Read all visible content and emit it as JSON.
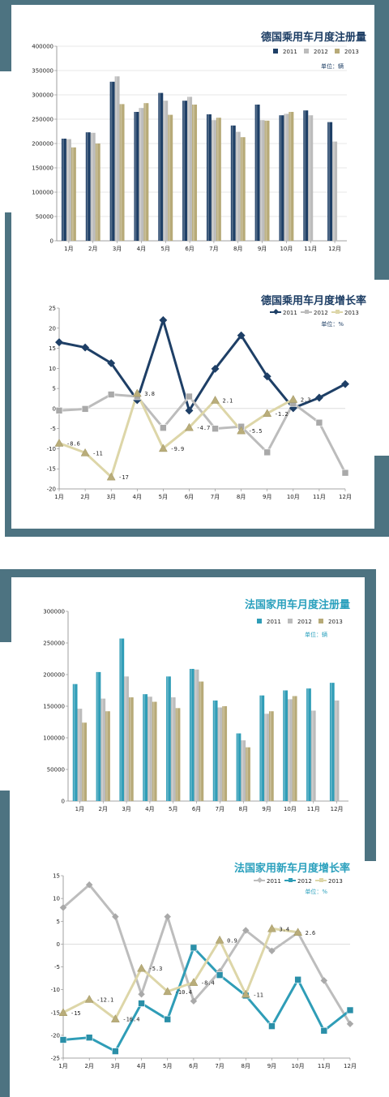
{
  "colors": {
    "de2011": "#1e3f66",
    "de2012": "#bcbcbc",
    "de2013": "#b7aa78",
    "fr2011": "#2f9db7",
    "fr2012": "#bcbcbc",
    "fr2013": "#b7aa78",
    "line2013": "#ddd6a8",
    "frame": "#4d7381",
    "grid": "#d0d0d0"
  },
  "chart_data": [
    {
      "type": "bar",
      "title": "德国乘用车月度注册量",
      "unit": "单位：辆",
      "categories": [
        "1月",
        "2月",
        "3月",
        "4月",
        "5月",
        "6月",
        "7月",
        "8月",
        "9月",
        "10月",
        "11月",
        "12月"
      ],
      "ylim": [
        0,
        400000
      ],
      "yticks": [
        "0",
        "50000",
        "100000",
        "150000",
        "200000",
        "250000",
        "300000",
        "350000",
        "400000"
      ],
      "grid": true,
      "legend": "top-right",
      "series": [
        {
          "name": "2011",
          "values": [
            210000,
            223000,
            327000,
            265000,
            304000,
            288000,
            260000,
            237000,
            280000,
            258000,
            268000,
            244000
          ]
        },
        {
          "name": "2012",
          "values": [
            209000,
            222000,
            338000,
            273000,
            288000,
            296000,
            248000,
            224000,
            248000,
            261000,
            258000,
            204000
          ]
        },
        {
          "name": "2013",
          "values": [
            192000,
            200000,
            281000,
            283000,
            259000,
            280000,
            253000,
            213000,
            247000,
            265000,
            null,
            null
          ]
        }
      ]
    },
    {
      "type": "line",
      "title": "德国乘用车月度增长率",
      "unit": "单位：%",
      "categories": [
        "1月",
        "2月",
        "3月",
        "4月",
        "5月",
        "6月",
        "7月",
        "8月",
        "9月",
        "10月",
        "11月",
        "12月"
      ],
      "ylim": [
        -20,
        25
      ],
      "yticks": [
        "-20",
        "-15",
        "-10",
        "-5",
        "0",
        "5",
        "10",
        "15",
        "20",
        "25"
      ],
      "grid": false,
      "legend": "top-right",
      "series": [
        {
          "name": "2011",
          "values": [
            16.5,
            15.2,
            11.3,
            2.1,
            22,
            -0.5,
            9.9,
            18.2,
            8,
            0.1,
            2.7,
            6.1
          ]
        },
        {
          "name": "2012",
          "values": [
            -0.5,
            -0.1,
            3.5,
            3,
            -4.8,
            3,
            -5,
            -4.5,
            -10.9,
            1.3,
            -3.5,
            -16
          ]
        },
        {
          "name": "2013",
          "values": [
            -8.6,
            -11,
            -17,
            3.8,
            -9.9,
            -4.7,
            2.1,
            -5.5,
            -1.2,
            2.3,
            null,
            null
          ]
        }
      ],
      "data_labels": [
        {
          "series": 2,
          "index": 0,
          "text": "-8.6"
        },
        {
          "series": 2,
          "index": 1,
          "text": "-11"
        },
        {
          "series": 2,
          "index": 2,
          "text": "-17"
        },
        {
          "series": 2,
          "index": 3,
          "text": "3.8"
        },
        {
          "series": 2,
          "index": 4,
          "text": "-9.9"
        },
        {
          "series": 2,
          "index": 5,
          "text": "-4.7"
        },
        {
          "series": 2,
          "index": 6,
          "text": "2.1"
        },
        {
          "series": 2,
          "index": 7,
          "text": "-5.5"
        },
        {
          "series": 2,
          "index": 8,
          "text": "-1.2"
        },
        {
          "series": 2,
          "index": 9,
          "text": "2.3"
        }
      ]
    },
    {
      "type": "bar",
      "title": "法国家用车月度注册量",
      "unit": "单位：辆",
      "categories": [
        "1月",
        "2月",
        "3月",
        "4月",
        "5月",
        "6月",
        "7月",
        "8月",
        "9月",
        "10月",
        "11月",
        "12月"
      ],
      "ylim": [
        0,
        300000
      ],
      "yticks": [
        "0",
        "50000",
        "100000",
        "150000",
        "200000",
        "250000",
        "300000"
      ],
      "grid": false,
      "legend": "top-right",
      "series": [
        {
          "name": "2011",
          "values": [
            185000,
            204000,
            257000,
            169000,
            197000,
            209000,
            159000,
            107000,
            167000,
            175000,
            178000,
            187000
          ]
        },
        {
          "name": "2012",
          "values": [
            146000,
            162000,
            197000,
            165000,
            164000,
            208000,
            148000,
            96000,
            138000,
            161000,
            143000,
            159000
          ]
        },
        {
          "name": "2013",
          "values": [
            124000,
            142000,
            164000,
            157000,
            147000,
            189000,
            150000,
            85000,
            142000,
            166000,
            null,
            null
          ]
        }
      ]
    },
    {
      "type": "line",
      "title": "法国家用新车月度增长率",
      "unit": "单位：%",
      "categories": [
        "1月",
        "2月",
        "3月",
        "4月",
        "5月",
        "6月",
        "7月",
        "8月",
        "9月",
        "10月",
        "11月",
        "12月"
      ],
      "ylim": [
        -25,
        15
      ],
      "yticks": [
        "-25",
        "-20",
        "-15",
        "-10",
        "-5",
        "0",
        "5",
        "10",
        "15"
      ],
      "grid": false,
      "legend": "top-right",
      "series": [
        {
          "name": "2011",
          "values": [
            8,
            13,
            6,
            -11,
            6,
            -12.5,
            -6,
            3,
            -1.5,
            2.5,
            -8,
            -17.5
          ]
        },
        {
          "name": "2012",
          "values": [
            -21,
            -20.5,
            -23.5,
            -13,
            -16.5,
            -0.8,
            -6.8,
            -11.3,
            -18,
            -7.8,
            -19,
            -14.5
          ]
        },
        {
          "name": "2013",
          "values": [
            -15,
            -12.1,
            -16.4,
            -5.3,
            -10.4,
            -8.4,
            0.9,
            -11,
            3.4,
            2.6,
            null,
            null
          ]
        }
      ],
      "data_labels": [
        {
          "series": 2,
          "index": 0,
          "text": "-15"
        },
        {
          "series": 2,
          "index": 1,
          "text": "-12.1"
        },
        {
          "series": 2,
          "index": 2,
          "text": "-16.4"
        },
        {
          "series": 2,
          "index": 3,
          "text": "-5.3"
        },
        {
          "series": 2,
          "index": 4,
          "text": "-10.4"
        },
        {
          "series": 2,
          "index": 5,
          "text": "-8.4"
        },
        {
          "series": 2,
          "index": 6,
          "text": "0.9"
        },
        {
          "series": 2,
          "index": 7,
          "text": "-11"
        },
        {
          "series": 2,
          "index": 8,
          "text": "3.4"
        },
        {
          "series": 2,
          "index": 9,
          "text": "2.6"
        }
      ]
    }
  ]
}
